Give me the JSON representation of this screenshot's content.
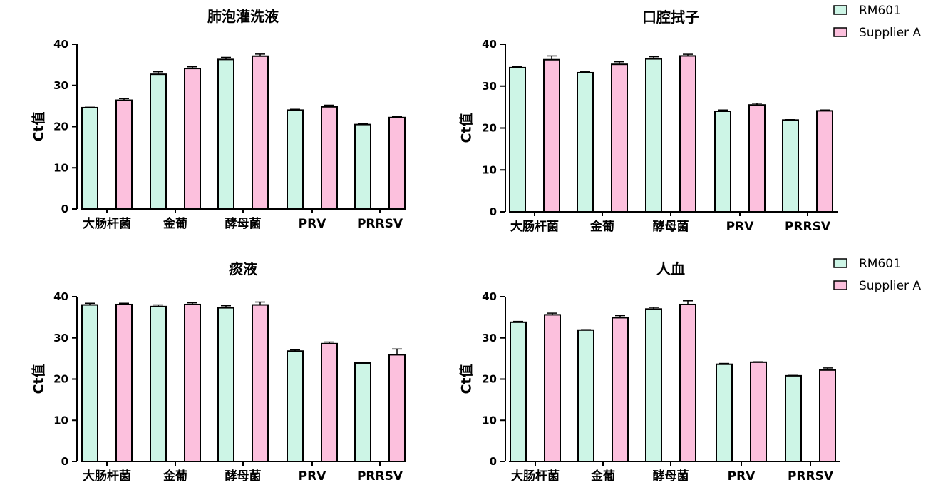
{
  "colors": {
    "rm601": "#cdf5e6",
    "supplier_a": "#fcc0dd",
    "stroke": "#000000"
  },
  "legend_entries": [
    "RM601",
    "Supplier A"
  ],
  "chart_data": [
    {
      "type": "bar",
      "title": "肺泡灌洗液",
      "categories": [
        "大肠杆菌",
        "金葡",
        "酵母菌",
        "PRV",
        "PRRSV"
      ],
      "ylabel": "Ct值",
      "ylim": [
        0,
        40
      ],
      "yticks": [
        0,
        10,
        20,
        30,
        40
      ],
      "grid": false,
      "series": [
        {
          "name": "RM601",
          "values": [
            24.6,
            32.7,
            36.3,
            24.0,
            20.5
          ],
          "errors": [
            0.1,
            0.6,
            0.5,
            0.2,
            0.2
          ]
        },
        {
          "name": "Supplier A",
          "values": [
            26.4,
            34.1,
            37.1,
            24.8,
            22.2
          ],
          "errors": [
            0.4,
            0.4,
            0.5,
            0.4,
            0.2
          ]
        }
      ]
    },
    {
      "type": "bar",
      "title": "口腔拭子",
      "categories": [
        "大肠杆菌",
        "金葡",
        "酵母菌",
        "PRV",
        "PRRSV"
      ],
      "ylabel": "Ct值",
      "ylim": [
        0,
        40
      ],
      "yticks": [
        0,
        10,
        20,
        30,
        40
      ],
      "grid": false,
      "legend": "top-right",
      "series": [
        {
          "name": "RM601",
          "values": [
            34.4,
            33.2,
            36.5,
            24.0,
            21.9
          ],
          "errors": [
            0.2,
            0.2,
            0.5,
            0.3,
            0.1
          ]
        },
        {
          "name": "Supplier A",
          "values": [
            36.3,
            35.2,
            37.2,
            25.5,
            24.1
          ],
          "errors": [
            0.9,
            0.6,
            0.4,
            0.4,
            0.2
          ]
        }
      ]
    },
    {
      "type": "bar",
      "title": "痰液",
      "categories": [
        "大肠杆菌",
        "金葡",
        "酵母菌",
        "PRV",
        "PRRSV"
      ],
      "ylabel": "Ct值",
      "ylim": [
        0,
        40
      ],
      "yticks": [
        0,
        10,
        20,
        30,
        40
      ],
      "grid": false,
      "series": [
        {
          "name": "RM601",
          "values": [
            38.0,
            37.6,
            37.3,
            26.8,
            23.9
          ],
          "errors": [
            0.4,
            0.4,
            0.5,
            0.3,
            0.2
          ]
        },
        {
          "name": "Supplier A",
          "values": [
            38.1,
            38.1,
            38.0,
            28.6,
            25.9
          ],
          "errors": [
            0.3,
            0.4,
            0.7,
            0.4,
            1.4
          ]
        }
      ]
    },
    {
      "type": "bar",
      "title": "人血",
      "categories": [
        "大肠杆菌",
        "金葡",
        "酵母菌",
        "PRV",
        "PRRSV"
      ],
      "ylabel": "Ct值",
      "ylim": [
        0,
        40
      ],
      "yticks": [
        0,
        10,
        20,
        30,
        40
      ],
      "grid": false,
      "legend": "top-right",
      "series": [
        {
          "name": "RM601",
          "values": [
            33.8,
            31.9,
            37.0,
            23.6,
            20.8
          ],
          "errors": [
            0.2,
            0.1,
            0.4,
            0.2,
            0.1
          ]
        },
        {
          "name": "Supplier A",
          "values": [
            35.6,
            34.9,
            38.1,
            24.1,
            22.2
          ],
          "errors": [
            0.4,
            0.5,
            0.9,
            0.1,
            0.5
          ]
        }
      ]
    }
  ]
}
